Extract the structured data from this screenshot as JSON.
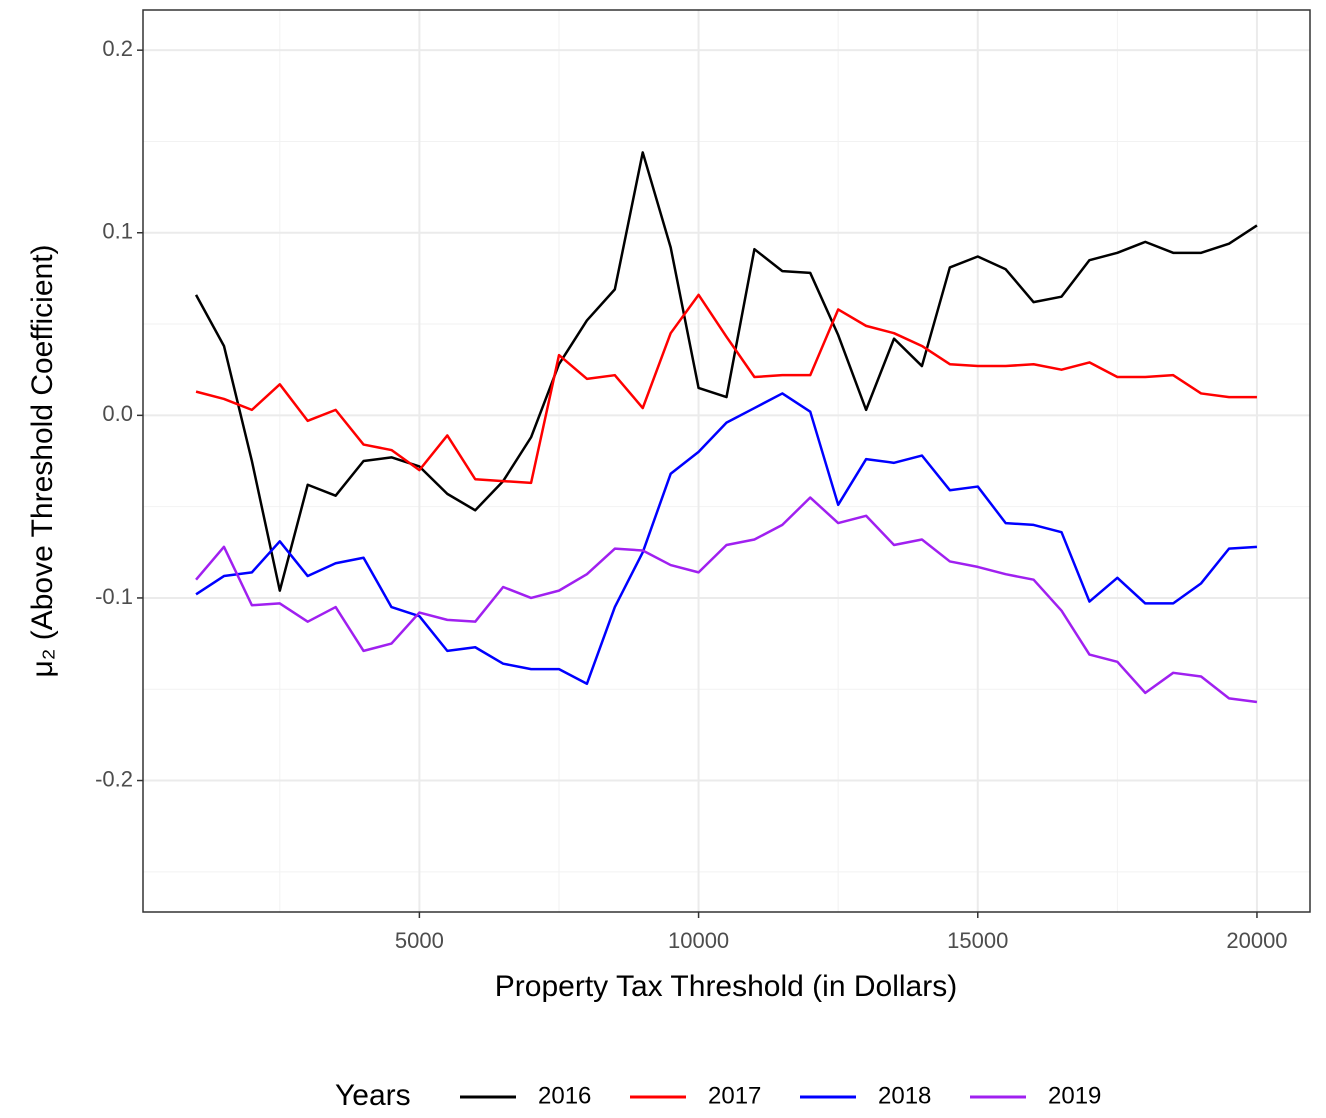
{
  "chart_data": {
    "type": "line",
    "xlabel": "Property Tax Threshold (in Dollars)",
    "ylabel": "μ₂ (Above Threshold Coefficient)",
    "legend_title": "Years",
    "legend_position": "bottom",
    "grid": true,
    "xlim": [
      50,
      20950
    ],
    "ylim": [
      -0.272,
      0.222
    ],
    "xticks": [
      5000,
      10000,
      15000,
      20000
    ],
    "yticks": [
      -0.2,
      -0.1,
      {
        "value": 0,
        "label": "0.0"
      },
      0.1,
      0.2
    ],
    "xminor": [
      2500,
      7500,
      12500,
      17500
    ],
    "yminor": [
      -0.25,
      -0.15,
      -0.05,
      0.05,
      0.15
    ],
    "x": [
      1000,
      1500,
      2000,
      2500,
      3000,
      3500,
      4000,
      4500,
      5000,
      5500,
      6000,
      6500,
      7000,
      7500,
      8000,
      8500,
      9000,
      9500,
      10000,
      10500,
      11000,
      11500,
      12000,
      12500,
      13000,
      13500,
      14000,
      14500,
      15000,
      15500,
      16000,
      16500,
      17000,
      17500,
      18000,
      18500,
      19000,
      19500,
      20000
    ],
    "series": [
      {
        "name": "2016",
        "color": "#000000",
        "values": [
          0.066,
          0.038,
          -0.025,
          -0.096,
          -0.038,
          -0.044,
          -0.025,
          -0.023,
          -0.028,
          -0.043,
          -0.052,
          -0.036,
          -0.012,
          0.028,
          0.052,
          0.069,
          0.144,
          0.092,
          0.015,
          0.01,
          0.091,
          0.079,
          0.078,
          0.044,
          0.003,
          0.042,
          0.027,
          0.081,
          0.087,
          0.08,
          0.062,
          0.065,
          0.085,
          0.089,
          0.095,
          0.089,
          0.089,
          0.094,
          0.104
        ]
      },
      {
        "name": "2017",
        "color": "#ff0000",
        "values": [
          0.013,
          0.009,
          0.003,
          0.017,
          -0.003,
          0.003,
          -0.016,
          -0.019,
          -0.03,
          -0.011,
          -0.035,
          -0.036,
          -0.037,
          0.033,
          0.02,
          0.022,
          0.004,
          0.045,
          0.066,
          0.043,
          0.021,
          0.022,
          0.022,
          0.058,
          0.049,
          0.045,
          0.038,
          0.028,
          0.027,
          0.027,
          0.028,
          0.025,
          0.029,
          0.021,
          0.021,
          0.022,
          0.012,
          0.01,
          0.01
        ]
      },
      {
        "name": "2018",
        "color": "#0000ff",
        "values": [
          -0.098,
          -0.088,
          -0.086,
          -0.069,
          -0.088,
          -0.081,
          -0.078,
          -0.105,
          -0.11,
          -0.129,
          -0.127,
          -0.136,
          -0.139,
          -0.139,
          -0.147,
          -0.105,
          -0.075,
          -0.032,
          -0.02,
          -0.004,
          0.004,
          0.012,
          0.002,
          -0.049,
          -0.024,
          -0.026,
          -0.022,
          -0.041,
          -0.039,
          -0.059,
          -0.06,
          -0.064,
          -0.102,
          -0.089,
          -0.103,
          -0.103,
          -0.092,
          -0.073,
          -0.072
        ]
      },
      {
        "name": "2019",
        "color": "#a020f0",
        "values": [
          -0.09,
          -0.072,
          -0.104,
          -0.103,
          -0.113,
          -0.105,
          -0.129,
          -0.125,
          -0.108,
          -0.112,
          -0.113,
          -0.094,
          -0.1,
          -0.096,
          -0.087,
          -0.073,
          -0.074,
          -0.082,
          -0.086,
          -0.071,
          -0.068,
          -0.06,
          -0.045,
          -0.059,
          -0.055,
          -0.071,
          -0.068,
          -0.08,
          -0.083,
          -0.087,
          -0.09,
          -0.107,
          -0.131,
          -0.135,
          -0.152,
          -0.141,
          -0.143,
          -0.155,
          -0.157
        ]
      }
    ]
  }
}
